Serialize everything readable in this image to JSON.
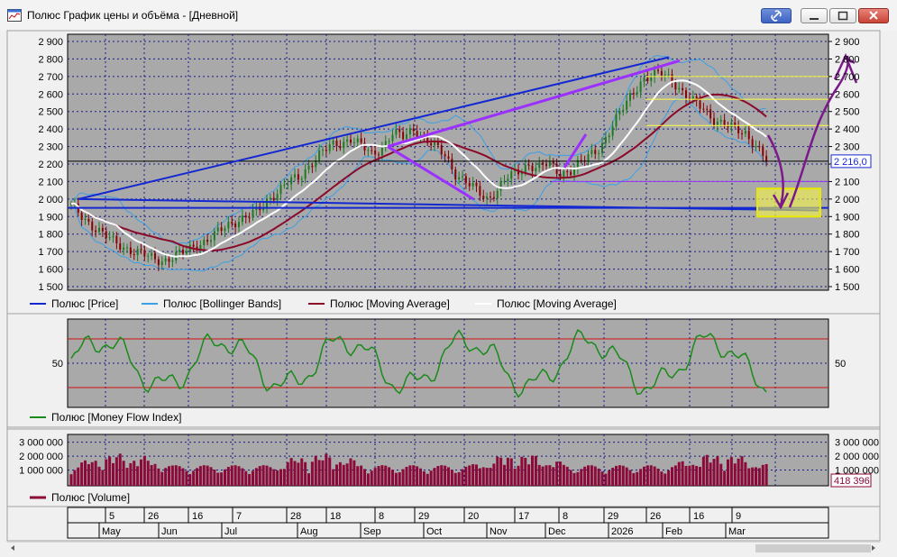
{
  "window": {
    "title": "Полюс График цены и объёма - [Дневной]"
  },
  "colors": {
    "plot_bg": "#a9a9a9",
    "grid": "#1a1a8c",
    "price_up": "#1e7a1e",
    "price_down": "#8b0000",
    "bollinger": "#3aa0e8",
    "ma_slow": "#8b0a2a",
    "ma_fast": "#ffffff",
    "mfi": "#1a8a1a",
    "mfi_levels": "#d01010",
    "volume": "#8b0a3a",
    "trend_blue": "#1428d2",
    "trend_purple": "#9b30ff",
    "support_purple": "#8a2be2",
    "yellow_lines": "#ffff40",
    "hand_arrow": "#7a1a8a"
  },
  "icons": [
    "chart-window-icon",
    "link-icon",
    "minimize-icon",
    "maximize-icon",
    "close-icon"
  ],
  "chart_data": [
    {
      "type": "candlestick",
      "panel": "price",
      "ylim": [
        1500,
        2900
      ],
      "y_ticks": [
        "2 900",
        "2 800",
        "2 700",
        "2 600",
        "2 500",
        "2 400",
        "2 300",
        "2 200",
        "2 100",
        "2 000",
        "1 900",
        "1 800",
        "1 700",
        "1 600",
        "1 500"
      ],
      "y_tick_values": [
        2900,
        2800,
        2700,
        2600,
        2500,
        2400,
        2300,
        2200,
        2100,
        2000,
        1900,
        1800,
        1700,
        1600,
        1500
      ],
      "last_value_label": "2 216,0",
      "last_value": 2216,
      "legend": [
        {
          "name": "Полюс [Price]",
          "color": "#1428d2"
        },
        {
          "name": "Полюс [Bollinger Bands]",
          "color": "#3aa0e8"
        },
        {
          "name": "Полюс [Moving Average]",
          "color": "#8b0a2a"
        },
        {
          "name": "Полюс [Moving Average]",
          "color": "#ffffff"
        }
      ],
      "close_series": [
        1960,
        1905,
        1850,
        1800,
        1760,
        1730,
        1700,
        1680,
        1660,
        1650,
        1670,
        1700,
        1740,
        1760,
        1800,
        1850,
        1880,
        1900,
        1930,
        2000,
        2050,
        2100,
        2120,
        2200,
        2260,
        2300,
        2320,
        2350,
        2300,
        2250,
        2300,
        2380,
        2350,
        2400,
        2350,
        2300,
        2250,
        2150,
        2100,
        2050,
        2000,
        2050,
        2120,
        2150,
        2200,
        2180,
        2200,
        2150,
        2160,
        2200,
        2250,
        2300,
        2400,
        2500,
        2600,
        2680,
        2700,
        2720,
        2680,
        2600,
        2550,
        2520,
        2450,
        2420,
        2400,
        2380,
        2300,
        2216
      ],
      "price_levels": [
        2700,
        2570,
        2420,
        2216,
        2100,
        1950
      ],
      "price_level_colors": [
        "#ffff40",
        "#ffff40",
        "#ffff40",
        "#000000",
        "#9b30ff",
        "#1428d2"
      ]
    },
    {
      "type": "line",
      "panel": "indicator",
      "legend": [
        {
          "name": "Полюс [Money Flow Index]",
          "color": "#1a8a1a"
        }
      ],
      "y_ticks": [
        "50"
      ],
      "y_tick_values": [
        50
      ],
      "levels": [
        80,
        20
      ]
    },
    {
      "type": "bar",
      "panel": "volume",
      "y_ticks": [
        "3 000 000",
        "2 000 000",
        "1 000 000"
      ],
      "y_tick_values": [
        3000000,
        2000000,
        1000000
      ],
      "last_value_label": "418 396",
      "last_value": 418396,
      "legend": [
        {
          "name": "Полюс [Volume]",
          "color": "#8b0a3a"
        }
      ]
    }
  ],
  "date_axis": {
    "days": [
      "5",
      "26",
      "16",
      "7",
      "28",
      "18",
      "8",
      "29",
      "20",
      "17",
      "8",
      "29",
      "26",
      "16",
      "9"
    ],
    "months": [
      "May",
      "Jun",
      "Jul",
      "Aug",
      "Sep",
      "Oct",
      "Nov",
      "Dec",
      "2026",
      "Feb",
      "Mar"
    ]
  }
}
